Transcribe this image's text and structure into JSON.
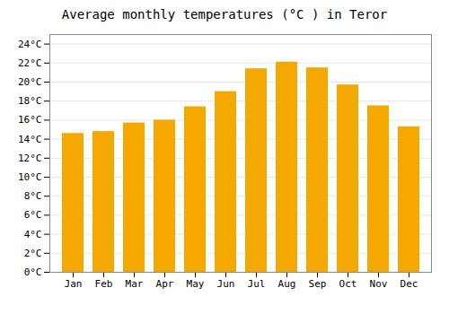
{
  "chart_data": {
    "type": "bar",
    "title": "Average monthly temperatures (°C ) in Teror",
    "categories": [
      "Jan",
      "Feb",
      "Mar",
      "Apr",
      "May",
      "Jun",
      "Jul",
      "Aug",
      "Sep",
      "Oct",
      "Nov",
      "Dec"
    ],
    "values": [
      14.6,
      14.8,
      15.7,
      16.0,
      17.4,
      19.0,
      21.4,
      22.1,
      21.5,
      19.7,
      17.5,
      15.3
    ],
    "color": "#F5A800",
    "ylim": [
      0,
      25
    ],
    "yticks": [
      {
        "value": 0,
        "label": "0°C"
      },
      {
        "value": 2,
        "label": "2°C"
      },
      {
        "value": 4,
        "label": "4°C"
      },
      {
        "value": 6,
        "label": "6°C"
      },
      {
        "value": 8,
        "label": "8°C"
      },
      {
        "value": 10,
        "label": "10°C"
      },
      {
        "value": 12,
        "label": "12°C"
      },
      {
        "value": 14,
        "label": "14°C"
      },
      {
        "value": 16,
        "label": "16°C"
      },
      {
        "value": 18,
        "label": "18°C"
      },
      {
        "value": 20,
        "label": "20°C"
      },
      {
        "value": 22,
        "label": "22°C"
      },
      {
        "value": 24,
        "label": "24°C"
      }
    ],
    "grid": true
  }
}
